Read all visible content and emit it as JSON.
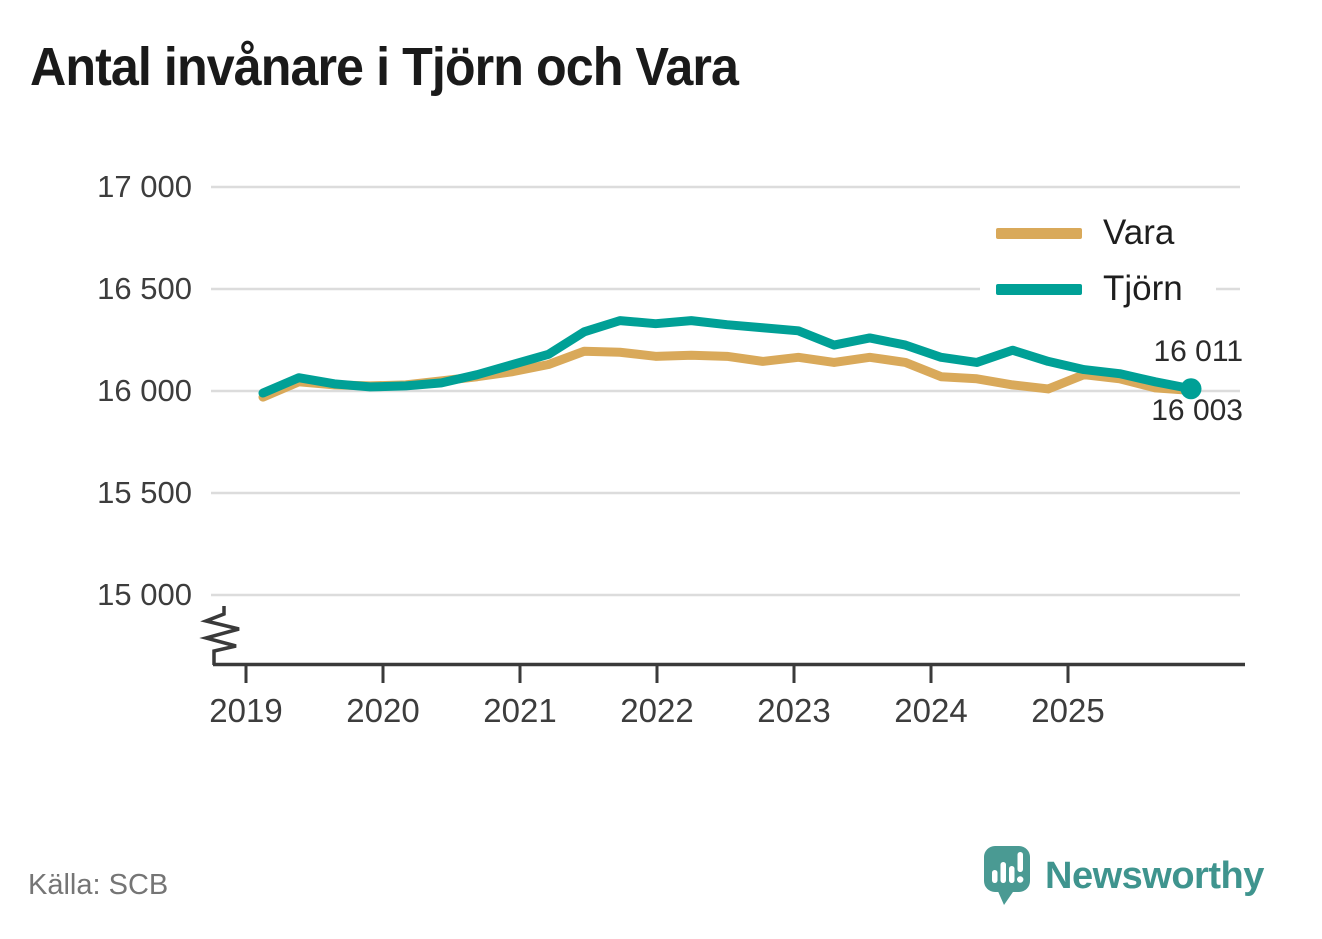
{
  "title": "Antal invånare i Tjörn och Vara",
  "source": "Källa: SCB",
  "branding": {
    "name": "Newsworthy",
    "icon": "newsworthy-speech-bubble-bar-chart-icon",
    "color": "#3F948E",
    "icon_color": "#4A9A93"
  },
  "chart_data": {
    "type": "line",
    "title": "Antal invånare i Tjörn och Vara",
    "xlabel": "",
    "ylabel": "",
    "grid": true,
    "legend_position": "top-right",
    "axis_break": true,
    "ylim": [
      15000,
      17000
    ],
    "y_tick_values": [
      17000,
      16500,
      16000,
      15500,
      15000
    ],
    "y_tick_labels": [
      "17 000",
      "16 500",
      "16 000",
      "15 500",
      "15 000"
    ],
    "x_tick_labels": [
      "2019",
      "2020",
      "2021",
      "2022",
      "2023",
      "2024",
      "2025"
    ],
    "x": [
      "2019 Q1",
      "2019 Q2",
      "2019 Q3",
      "2019 Q4",
      "2020 Q1",
      "2020 Q2",
      "2020 Q3",
      "2020 Q4",
      "2021 Q1",
      "2021 Q2",
      "2021 Q3",
      "2021 Q4",
      "2022 Q1",
      "2022 Q2",
      "2022 Q3",
      "2022 Q4",
      "2023 Q1",
      "2023 Q2",
      "2023 Q3",
      "2023 Q4",
      "2024 Q1",
      "2024 Q2",
      "2024 Q3",
      "2024 Q4",
      "2025 Q1",
      "2025 Q2",
      "2025 Q3"
    ],
    "series": [
      {
        "name": "Vara",
        "color": "#D9A95A",
        "end_label": "16 003",
        "end_value": 16003,
        "end_marker": false,
        "values": [
          15970,
          16045,
          16030,
          16025,
          16030,
          16050,
          16070,
          16095,
          16130,
          16195,
          16190,
          16170,
          16175,
          16170,
          16145,
          16165,
          16140,
          16165,
          16140,
          16070,
          16060,
          16030,
          16010,
          16080,
          16060,
          16015,
          16003
        ]
      },
      {
        "name": "Tjörn",
        "color": "#00A096",
        "end_label": "16 011",
        "end_value": 16011,
        "end_marker": true,
        "values": [
          15990,
          16065,
          16035,
          16020,
          16025,
          16040,
          16080,
          16130,
          16180,
          16290,
          16345,
          16330,
          16345,
          16325,
          16310,
          16295,
          16225,
          16260,
          16225,
          16165,
          16140,
          16200,
          16145,
          16105,
          16085,
          16045,
          16011
        ]
      }
    ]
  }
}
